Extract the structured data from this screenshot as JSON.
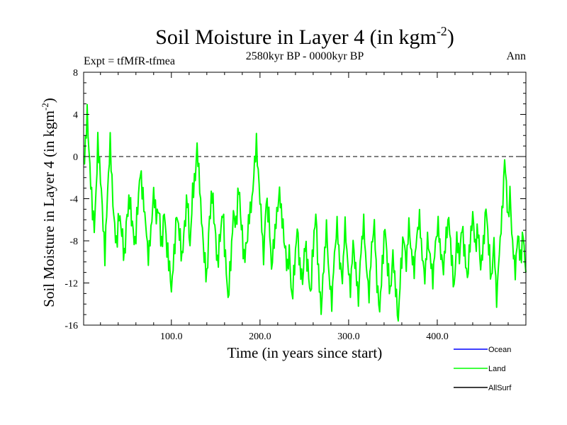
{
  "chart_data": {
    "type": "line",
    "title": "Soil Moisture in Layer 4 (in kgm",
    "title_sup": "-2",
    "title_close": ")",
    "expt_label": "Expt = tfMfR-tfmea",
    "subtitle": "2580kyr BP - 0000kyr BP",
    "season_label": "Ann",
    "xlabel": "Time (in years since start)",
    "ylabel": "Soil Moisture in Layer 4 (in kgm",
    "ylabel_sup": "-2",
    "ylabel_close": ")",
    "xlim": [
      1,
      500
    ],
    "ylim": [
      -16,
      8
    ],
    "x_ticks": [
      100,
      200,
      300,
      400
    ],
    "x_tick_labels": [
      "100.0",
      "200.0",
      "300.0",
      "400.0"
    ],
    "y_ticks": [
      8,
      4,
      0,
      -4,
      -8,
      -12,
      -16
    ],
    "y_tick_labels": [
      "8",
      "4",
      "0",
      "-4",
      "-8",
      "-12",
      "-16"
    ],
    "reference_line": {
      "y": 0,
      "style": "dashed"
    },
    "legend": [
      {
        "name": "Ocean",
        "color": "#0000ff"
      },
      {
        "name": "Land",
        "color": "#00ff00"
      },
      {
        "name": "AllSurf",
        "color": "#000000"
      }
    ],
    "series": [
      {
        "name": "Land",
        "color": "#00ff00",
        "anchors": [
          [
            1,
            -1.5
          ],
          [
            3,
            1
          ],
          [
            5,
            4.5
          ],
          [
            7,
            1
          ],
          [
            9,
            -2
          ],
          [
            11,
            -5
          ],
          [
            13,
            -7
          ],
          [
            15,
            -4
          ],
          [
            17,
            1
          ],
          [
            19,
            -1
          ],
          [
            21,
            -3
          ],
          [
            23,
            -6
          ],
          [
            25,
            -9
          ],
          [
            27,
            -5
          ],
          [
            29,
            -2
          ],
          [
            31,
            1
          ],
          [
            33,
            -3
          ],
          [
            35,
            -6
          ],
          [
            38,
            -8
          ],
          [
            41,
            -5
          ],
          [
            44,
            -7
          ],
          [
            47,
            -10
          ],
          [
            50,
            -6
          ],
          [
            53,
            -4
          ],
          [
            56,
            -6
          ],
          [
            59,
            -8
          ],
          [
            62,
            -5
          ],
          [
            65,
            -2
          ],
          [
            68,
            -4
          ],
          [
            71,
            -6
          ],
          [
            74,
            -9
          ],
          [
            77,
            -7
          ],
          [
            80,
            -4
          ],
          [
            83,
            -6
          ],
          [
            86,
            -5
          ],
          [
            89,
            -8
          ],
          [
            92,
            -5
          ],
          [
            95,
            -9
          ],
          [
            98,
            -11
          ],
          [
            100,
            -13
          ],
          [
            103,
            -9
          ],
          [
            106,
            -5
          ],
          [
            109,
            -7
          ],
          [
            112,
            -10
          ],
          [
            115,
            -7
          ],
          [
            118,
            -4
          ],
          [
            121,
            -8
          ],
          [
            124,
            -3
          ],
          [
            127,
            -2
          ],
          [
            129,
            0.5
          ],
          [
            131,
            -2
          ],
          [
            134,
            -6
          ],
          [
            137,
            -9
          ],
          [
            140,
            -11
          ],
          [
            143,
            -6
          ],
          [
            146,
            -4
          ],
          [
            149,
            -7
          ],
          [
            152,
            -10
          ],
          [
            155,
            -7
          ],
          [
            158,
            -5
          ],
          [
            161,
            -10
          ],
          [
            164,
            -14
          ],
          [
            167,
            -10
          ],
          [
            170,
            -5
          ],
          [
            173,
            -6
          ],
          [
            176,
            -3
          ],
          [
            179,
            -7
          ],
          [
            182,
            -10
          ],
          [
            185,
            -8
          ],
          [
            188,
            -5
          ],
          [
            191,
            -4
          ],
          [
            194,
            -1
          ],
          [
            196,
            0.8
          ],
          [
            198,
            -2
          ],
          [
            201,
            -5
          ],
          [
            204,
            -9
          ],
          [
            207,
            -4
          ],
          [
            210,
            -6
          ],
          [
            213,
            -11
          ],
          [
            216,
            -8
          ],
          [
            219,
            -5
          ],
          [
            222,
            -3
          ],
          [
            225,
            -6
          ],
          [
            228,
            -9
          ],
          [
            231,
            -11
          ],
          [
            233,
            -9
          ],
          [
            236,
            -13
          ],
          [
            239,
            -10
          ],
          [
            242,
            -7
          ],
          [
            245,
            -11
          ],
          [
            248,
            -12
          ],
          [
            251,
            -8
          ],
          [
            254,
            -10
          ],
          [
            257,
            -13
          ],
          [
            260,
            -9
          ],
          [
            263,
            -6
          ],
          [
            266,
            -11
          ],
          [
            269,
            -14
          ],
          [
            272,
            -10
          ],
          [
            275,
            -7
          ],
          [
            278,
            -12
          ],
          [
            281,
            -14
          ],
          [
            284,
            -9
          ],
          [
            287,
            -6
          ],
          [
            290,
            -10
          ],
          [
            293,
            -12
          ],
          [
            296,
            -7
          ],
          [
            299,
            -10
          ],
          [
            302,
            -12
          ],
          [
            305,
            -8
          ],
          [
            308,
            -11
          ],
          [
            311,
            -14
          ],
          [
            314,
            -9
          ],
          [
            317,
            -6
          ],
          [
            320,
            -10
          ],
          [
            323,
            -13
          ],
          [
            326,
            -9
          ],
          [
            329,
            -7
          ],
          [
            332,
            -12
          ],
          [
            335,
            -14
          ],
          [
            338,
            -10
          ],
          [
            341,
            -7
          ],
          [
            344,
            -11
          ],
          [
            347,
            -13
          ],
          [
            350,
            -9
          ],
          [
            353,
            -12
          ],
          [
            356,
            -15.5
          ],
          [
            359,
            -11
          ],
          [
            362,
            -8
          ],
          [
            365,
            -10
          ],
          [
            368,
            -6
          ],
          [
            371,
            -9
          ],
          [
            374,
            -11
          ],
          [
            377,
            -8
          ],
          [
            380,
            -6
          ],
          [
            383,
            -9
          ],
          [
            386,
            -11
          ],
          [
            389,
            -8
          ],
          [
            392,
            -10
          ],
          [
            395,
            -12
          ],
          [
            398,
            -8
          ],
          [
            401,
            -6
          ],
          [
            404,
            -9
          ],
          [
            407,
            -11
          ],
          [
            410,
            -8
          ],
          [
            413,
            -6
          ],
          [
            416,
            -9
          ],
          [
            419,
            -12
          ],
          [
            422,
            -8
          ],
          [
            425,
            -10
          ],
          [
            428,
            -7
          ],
          [
            431,
            -9
          ],
          [
            434,
            -11
          ],
          [
            437,
            -8
          ],
          [
            440,
            -6
          ],
          [
            443,
            -9
          ],
          [
            446,
            -7
          ],
          [
            449,
            -10
          ],
          [
            452,
            -8
          ],
          [
            455,
            -5
          ],
          [
            458,
            -9
          ],
          [
            461,
            -12
          ],
          [
            464,
            -8
          ],
          [
            467,
            -13
          ],
          [
            470,
            -9
          ],
          [
            473,
            -6
          ],
          [
            475,
            -3
          ],
          [
            476,
            -0.5
          ],
          [
            478,
            -3
          ],
          [
            480,
            -6
          ],
          [
            482,
            -3
          ],
          [
            485,
            -8
          ],
          [
            488,
            -11
          ],
          [
            491,
            -8
          ],
          [
            494,
            -10
          ],
          [
            497,
            -7
          ],
          [
            500,
            -11
          ]
        ]
      }
    ]
  }
}
